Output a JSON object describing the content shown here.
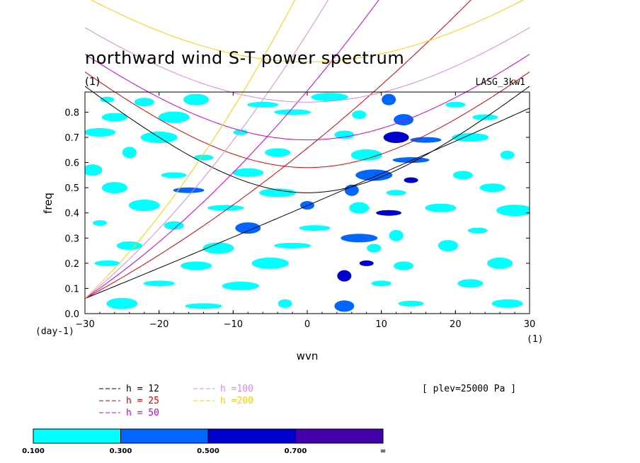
{
  "chart_data": {
    "type": "heatmap",
    "title": "northward wind S-T power spectrum",
    "subtitle": "(1)",
    "model_label": "LASG_3kw1",
    "xlabel": "wvn",
    "ylabel": "freq",
    "x_unit_label": "(1)",
    "y_unit_label": "(day-1)",
    "xlim": [
      -30,
      30
    ],
    "ylim": [
      0,
      0.88
    ],
    "x_ticks": [
      -30,
      -20,
      -10,
      0,
      10,
      20,
      30
    ],
    "x_tick_labels": [
      "−30",
      "−20",
      "−10",
      "0",
      "10",
      "20",
      "30"
    ],
    "y_ticks": [
      0,
      0.1,
      0.2,
      0.3,
      0.4,
      0.5,
      0.6,
      0.7,
      0.8
    ],
    "y_tick_labels": [
      "0.0",
      "0.1",
      "0.2",
      "0.3",
      "0.4",
      "0.5",
      "0.6",
      "0.7",
      "0.8"
    ],
    "plev_note": "[ plev=25000 Pa ]",
    "legend_placement": "bottom-left",
    "series": [
      {
        "name": "h = 12",
        "color": "#000000",
        "min_freq": 0.48,
        "sym_curve": true
      },
      {
        "name": "h = 25",
        "color": "#dd0000",
        "min_freq": 0.58,
        "sym_curve": true
      },
      {
        "name": "h = 50",
        "color": "#cc00cc",
        "min_freq": 0.69,
        "sym_curve": true
      },
      {
        "name": "h =100",
        "color": "#dd88dd",
        "min_freq": 0.84,
        "sym_curve": true
      },
      {
        "name": "h =200",
        "color": "#ffcc00",
        "min_freq": 1.0,
        "sym_curve": true
      }
    ],
    "colorbar": {
      "levels": [
        "0.100",
        "0.300",
        "0.500",
        "0.700",
        "∞"
      ],
      "colors": [
        "#00ffff",
        "#0066ff",
        "#0000cc",
        "#4400aa"
      ]
    },
    "blobs": [
      {
        "x": -27,
        "y": 0.85,
        "level": 0
      },
      {
        "x": -22,
        "y": 0.84,
        "level": 0
      },
      {
        "x": -15,
        "y": 0.85,
        "level": 0
      },
      {
        "x": -6,
        "y": 0.83,
        "level": 0
      },
      {
        "x": 3,
        "y": 0.86,
        "level": 0
      },
      {
        "x": 11,
        "y": 0.85,
        "level": 1
      },
      {
        "x": 20,
        "y": 0.83,
        "level": 0
      },
      {
        "x": -26,
        "y": 0.78,
        "level": 0
      },
      {
        "x": -18,
        "y": 0.78,
        "level": 0
      },
      {
        "x": -2,
        "y": 0.8,
        "level": 0
      },
      {
        "x": 7,
        "y": 0.79,
        "level": 0
      },
      {
        "x": 13,
        "y": 0.77,
        "level": 1
      },
      {
        "x": 24,
        "y": 0.78,
        "level": 0
      },
      {
        "x": -28,
        "y": 0.72,
        "level": 0
      },
      {
        "x": -20,
        "y": 0.7,
        "level": 0
      },
      {
        "x": -9,
        "y": 0.72,
        "level": 0
      },
      {
        "x": 5,
        "y": 0.71,
        "level": 0
      },
      {
        "x": 12,
        "y": 0.7,
        "level": 2
      },
      {
        "x": 16,
        "y": 0.69,
        "level": 1
      },
      {
        "x": 22,
        "y": 0.7,
        "level": 0
      },
      {
        "x": -24,
        "y": 0.64,
        "level": 0
      },
      {
        "x": -14,
        "y": 0.62,
        "level": 0
      },
      {
        "x": -4,
        "y": 0.64,
        "level": 0
      },
      {
        "x": 8,
        "y": 0.63,
        "level": 0
      },
      {
        "x": 14,
        "y": 0.61,
        "level": 1
      },
      {
        "x": 27,
        "y": 0.63,
        "level": 0
      },
      {
        "x": -29,
        "y": 0.57,
        "level": 0
      },
      {
        "x": -18,
        "y": 0.55,
        "level": 0
      },
      {
        "x": -8,
        "y": 0.56,
        "level": 0
      },
      {
        "x": 9,
        "y": 0.55,
        "level": 1
      },
      {
        "x": 14,
        "y": 0.53,
        "level": 2
      },
      {
        "x": 21,
        "y": 0.55,
        "level": 0
      },
      {
        "x": -26,
        "y": 0.5,
        "level": 0
      },
      {
        "x": -16,
        "y": 0.49,
        "level": 1
      },
      {
        "x": -4,
        "y": 0.48,
        "level": 0
      },
      {
        "x": 6,
        "y": 0.49,
        "level": 1
      },
      {
        "x": 12,
        "y": 0.48,
        "level": 0
      },
      {
        "x": 25,
        "y": 0.5,
        "level": 0
      },
      {
        "x": -22,
        "y": 0.43,
        "level": 0
      },
      {
        "x": -11,
        "y": 0.42,
        "level": 0
      },
      {
        "x": 0,
        "y": 0.43,
        "level": 1
      },
      {
        "x": 7,
        "y": 0.42,
        "level": 0
      },
      {
        "x": 11,
        "y": 0.4,
        "level": 2
      },
      {
        "x": 18,
        "y": 0.42,
        "level": 0
      },
      {
        "x": 28,
        "y": 0.41,
        "level": 0
      },
      {
        "x": -28,
        "y": 0.36,
        "level": 0
      },
      {
        "x": -18,
        "y": 0.35,
        "level": 0
      },
      {
        "x": -8,
        "y": 0.34,
        "level": 1
      },
      {
        "x": 1,
        "y": 0.34,
        "level": 0
      },
      {
        "x": 7,
        "y": 0.3,
        "level": 1
      },
      {
        "x": 12,
        "y": 0.31,
        "level": 0
      },
      {
        "x": 23,
        "y": 0.33,
        "level": 0
      },
      {
        "x": -24,
        "y": 0.27,
        "level": 0
      },
      {
        "x": -12,
        "y": 0.26,
        "level": 0
      },
      {
        "x": -2,
        "y": 0.27,
        "level": 0
      },
      {
        "x": 9,
        "y": 0.26,
        "level": 0
      },
      {
        "x": 19,
        "y": 0.27,
        "level": 0
      },
      {
        "x": -27,
        "y": 0.2,
        "level": 0
      },
      {
        "x": -15,
        "y": 0.19,
        "level": 0
      },
      {
        "x": -5,
        "y": 0.2,
        "level": 0
      },
      {
        "x": 8,
        "y": 0.2,
        "level": 2
      },
      {
        "x": 13,
        "y": 0.19,
        "level": 0
      },
      {
        "x": 26,
        "y": 0.2,
        "level": 0
      },
      {
        "x": -20,
        "y": 0.12,
        "level": 0
      },
      {
        "x": -9,
        "y": 0.11,
        "level": 0
      },
      {
        "x": 5,
        "y": 0.15,
        "level": 2
      },
      {
        "x": 10,
        "y": 0.12,
        "level": 0
      },
      {
        "x": 22,
        "y": 0.12,
        "level": 0
      },
      {
        "x": -25,
        "y": 0.04,
        "level": 0
      },
      {
        "x": -14,
        "y": 0.03,
        "level": 0
      },
      {
        "x": -3,
        "y": 0.04,
        "level": 0
      },
      {
        "x": 5,
        "y": 0.03,
        "level": 1
      },
      {
        "x": 14,
        "y": 0.04,
        "level": 0
      },
      {
        "x": 27,
        "y": 0.04,
        "level": 0
      }
    ]
  }
}
